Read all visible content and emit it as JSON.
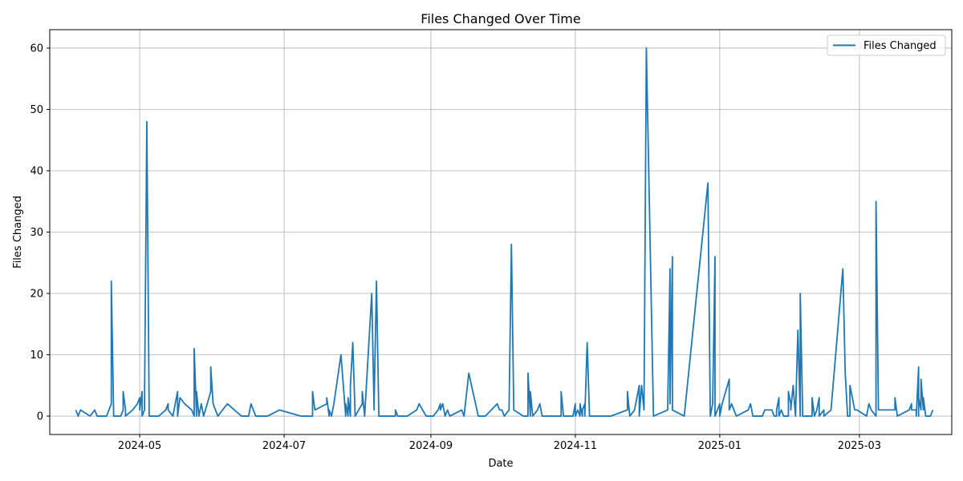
{
  "chart_data": {
    "type": "line",
    "title": "Files Changed Over Time",
    "xlabel": "Date",
    "ylabel": "Files Changed",
    "x_scale": "date",
    "xlim": [
      "2024-03-24",
      "2025-04-09"
    ],
    "ylim": [
      -3,
      63
    ],
    "x_ticks": [
      "2024-05-01",
      "2024-07-01",
      "2024-09-01",
      "2024-11-01",
      "2025-01-01",
      "2025-03-01"
    ],
    "x_tick_labels": [
      "2024-05",
      "2024-07",
      "2024-09",
      "2024-11",
      "2025-01",
      "2025-03"
    ],
    "y_ticks": [
      0,
      10,
      20,
      30,
      40,
      50,
      60
    ],
    "y_tick_labels": [
      "0",
      "10",
      "20",
      "30",
      "40",
      "50",
      "60"
    ],
    "grid": true,
    "legend_position": "top-right",
    "series": [
      {
        "name": "Files Changed",
        "color": "#1f77b4",
        "points": [
          [
            "2024-04-04",
            1
          ],
          [
            "2024-04-05",
            0
          ],
          [
            "2024-04-06",
            1
          ],
          [
            "2024-04-10",
            0
          ],
          [
            "2024-04-12",
            1
          ],
          [
            "2024-04-13",
            0
          ],
          [
            "2024-04-17",
            0
          ],
          [
            "2024-04-19",
            2
          ],
          [
            "2024-04-19",
            22
          ],
          [
            "2024-04-20",
            0
          ],
          [
            "2024-04-23",
            0
          ],
          [
            "2024-04-24",
            1
          ],
          [
            "2024-04-24",
            4
          ],
          [
            "2024-04-25",
            1
          ],
          [
            "2024-04-25",
            0
          ],
          [
            "2024-04-28",
            1
          ],
          [
            "2024-04-30",
            2
          ],
          [
            "2024-05-01",
            3
          ],
          [
            "2024-05-01",
            1
          ],
          [
            "2024-05-02",
            4
          ],
          [
            "2024-05-02",
            0
          ],
          [
            "2024-05-03",
            1
          ],
          [
            "2024-05-04",
            48
          ],
          [
            "2024-05-05",
            0
          ],
          [
            "2024-05-09",
            0
          ],
          [
            "2024-05-12",
            1
          ],
          [
            "2024-05-13",
            2
          ],
          [
            "2024-05-13",
            1
          ],
          [
            "2024-05-15",
            0
          ],
          [
            "2024-05-17",
            4
          ],
          [
            "2024-05-17",
            0
          ],
          [
            "2024-05-18",
            3
          ],
          [
            "2024-05-20",
            2
          ],
          [
            "2024-05-23",
            1
          ],
          [
            "2024-05-24",
            0
          ],
          [
            "2024-05-24",
            11
          ],
          [
            "2024-05-25",
            0
          ],
          [
            "2024-05-25",
            4
          ],
          [
            "2024-05-26",
            0
          ],
          [
            "2024-05-27",
            2
          ],
          [
            "2024-05-28",
            0
          ],
          [
            "2024-05-31",
            4
          ],
          [
            "2024-05-31",
            8
          ],
          [
            "2024-06-01",
            2
          ],
          [
            "2024-06-03",
            0
          ],
          [
            "2024-06-07",
            2
          ],
          [
            "2024-06-10",
            1
          ],
          [
            "2024-06-13",
            0
          ],
          [
            "2024-06-16",
            0
          ],
          [
            "2024-06-17",
            2
          ],
          [
            "2024-06-18",
            1
          ],
          [
            "2024-06-19",
            0
          ],
          [
            "2024-06-21",
            0
          ],
          [
            "2024-06-24",
            0
          ],
          [
            "2024-06-29",
            1
          ],
          [
            "2024-07-08",
            0
          ],
          [
            "2024-07-13",
            0
          ],
          [
            "2024-07-13",
            4
          ],
          [
            "2024-07-14",
            1
          ],
          [
            "2024-07-19",
            2
          ],
          [
            "2024-07-19",
            3
          ],
          [
            "2024-07-20",
            0
          ],
          [
            "2024-07-20",
            1
          ],
          [
            "2024-07-21",
            0
          ],
          [
            "2024-07-22",
            2
          ],
          [
            "2024-07-25",
            10
          ],
          [
            "2024-07-27",
            0
          ],
          [
            "2024-07-27",
            2
          ],
          [
            "2024-07-28",
            0
          ],
          [
            "2024-07-28",
            3
          ],
          [
            "2024-07-29",
            0
          ],
          [
            "2024-07-29",
            5
          ],
          [
            "2024-07-30",
            12
          ],
          [
            "2024-07-31",
            0
          ],
          [
            "2024-08-03",
            2
          ],
          [
            "2024-08-03",
            4
          ],
          [
            "2024-08-04",
            0
          ],
          [
            "2024-08-07",
            20
          ],
          [
            "2024-08-08",
            1
          ],
          [
            "2024-08-08",
            2
          ],
          [
            "2024-08-09",
            22
          ],
          [
            "2024-08-10",
            0
          ],
          [
            "2024-08-17",
            0
          ],
          [
            "2024-08-17",
            1
          ],
          [
            "2024-08-18",
            0
          ],
          [
            "2024-08-22",
            0
          ],
          [
            "2024-08-26",
            1
          ],
          [
            "2024-08-27",
            2
          ],
          [
            "2024-08-30",
            0
          ],
          [
            "2024-09-02",
            0
          ],
          [
            "2024-09-04",
            1
          ],
          [
            "2024-09-05",
            2
          ],
          [
            "2024-09-05",
            1
          ],
          [
            "2024-09-06",
            2
          ],
          [
            "2024-09-07",
            0
          ],
          [
            "2024-09-08",
            1
          ],
          [
            "2024-09-09",
            0
          ],
          [
            "2024-09-14",
            1
          ],
          [
            "2024-09-15",
            0
          ],
          [
            "2024-09-17",
            7
          ],
          [
            "2024-09-21",
            0
          ],
          [
            "2024-09-24",
            0
          ],
          [
            "2024-09-29",
            2
          ],
          [
            "2024-09-30",
            1
          ],
          [
            "2024-10-01",
            1
          ],
          [
            "2024-10-02",
            0
          ],
          [
            "2024-10-04",
            1
          ],
          [
            "2024-10-05",
            28
          ],
          [
            "2024-10-06",
            1
          ],
          [
            "2024-10-10",
            0
          ],
          [
            "2024-10-12",
            0
          ],
          [
            "2024-10-12",
            7
          ],
          [
            "2024-10-13",
            0
          ],
          [
            "2024-10-13",
            4
          ],
          [
            "2024-10-14",
            0
          ],
          [
            "2024-10-16",
            1
          ],
          [
            "2024-10-17",
            2
          ],
          [
            "2024-10-18",
            0
          ],
          [
            "2024-10-26",
            0
          ],
          [
            "2024-10-26",
            4
          ],
          [
            "2024-10-27",
            0
          ],
          [
            "2024-10-31",
            0
          ],
          [
            "2024-11-01",
            2
          ],
          [
            "2024-11-01",
            0
          ],
          [
            "2024-11-02",
            1
          ],
          [
            "2024-11-03",
            0
          ],
          [
            "2024-11-03",
            2
          ],
          [
            "2024-11-04",
            0
          ],
          [
            "2024-11-04",
            1
          ],
          [
            "2024-11-05",
            2
          ],
          [
            "2024-11-05",
            0
          ],
          [
            "2024-11-06",
            12
          ],
          [
            "2024-11-07",
            0
          ],
          [
            "2024-11-16",
            0
          ],
          [
            "2024-11-23",
            1
          ],
          [
            "2024-11-23",
            4
          ],
          [
            "2024-11-24",
            0
          ],
          [
            "2024-11-26",
            1
          ],
          [
            "2024-11-28",
            5
          ],
          [
            "2024-11-28",
            0
          ],
          [
            "2024-11-29",
            5
          ],
          [
            "2024-11-30",
            1
          ],
          [
            "2024-11-30",
            1
          ],
          [
            "2024-12-01",
            60
          ],
          [
            "2024-12-04",
            0
          ],
          [
            "2024-12-10",
            1
          ],
          [
            "2024-12-11",
            24
          ],
          [
            "2024-12-11",
            2
          ],
          [
            "2024-12-12",
            26
          ],
          [
            "2024-12-12",
            1
          ],
          [
            "2024-12-17",
            0
          ],
          [
            "2024-12-27",
            38
          ],
          [
            "2024-12-28",
            0
          ],
          [
            "2024-12-29",
            2
          ],
          [
            "2024-12-30",
            26
          ],
          [
            "2024-12-30",
            0
          ],
          [
            "2024-12-31",
            1
          ],
          [
            "2025-01-01",
            2
          ],
          [
            "2025-01-01",
            0
          ],
          [
            "2025-01-02",
            2
          ],
          [
            "2025-01-05",
            6
          ],
          [
            "2025-01-05",
            1
          ],
          [
            "2025-01-06",
            2
          ],
          [
            "2025-01-08",
            0
          ],
          [
            "2025-01-13",
            1
          ],
          [
            "2025-01-14",
            2
          ],
          [
            "2025-01-15",
            0
          ],
          [
            "2025-01-19",
            0
          ],
          [
            "2025-01-20",
            1
          ],
          [
            "2025-01-22",
            1
          ],
          [
            "2025-01-23",
            1
          ],
          [
            "2025-01-24",
            0
          ],
          [
            "2025-01-25",
            0
          ],
          [
            "2025-01-25",
            1
          ],
          [
            "2025-01-26",
            3
          ],
          [
            "2025-01-26",
            0
          ],
          [
            "2025-01-27",
            1
          ],
          [
            "2025-01-28",
            0
          ],
          [
            "2025-01-30",
            0
          ],
          [
            "2025-01-30",
            4
          ],
          [
            "2025-01-31",
            2
          ],
          [
            "2025-01-31",
            1
          ],
          [
            "2025-02-01",
            5
          ],
          [
            "2025-02-02",
            0
          ],
          [
            "2025-02-03",
            14
          ],
          [
            "2025-02-04",
            0
          ],
          [
            "2025-02-04",
            20
          ],
          [
            "2025-02-05",
            1
          ],
          [
            "2025-02-05",
            0
          ],
          [
            "2025-02-07",
            0
          ],
          [
            "2025-02-09",
            0
          ],
          [
            "2025-02-09",
            3
          ],
          [
            "2025-02-10",
            0
          ],
          [
            "2025-02-11",
            1
          ],
          [
            "2025-02-12",
            3
          ],
          [
            "2025-02-12",
            0
          ],
          [
            "2025-02-14",
            1
          ],
          [
            "2025-02-14",
            0
          ],
          [
            "2025-02-17",
            1
          ],
          [
            "2025-02-22",
            24
          ],
          [
            "2025-02-23",
            7
          ],
          [
            "2025-02-24",
            0
          ],
          [
            "2025-02-25",
            0
          ],
          [
            "2025-02-25",
            5
          ],
          [
            "2025-02-26",
            3
          ],
          [
            "2025-02-27",
            1
          ],
          [
            "2025-02-28",
            1
          ],
          [
            "2025-03-04",
            0
          ],
          [
            "2025-03-05",
            2
          ],
          [
            "2025-03-06",
            1
          ],
          [
            "2025-03-08",
            0
          ],
          [
            "2025-03-08",
            35
          ],
          [
            "2025-03-09",
            2
          ],
          [
            "2025-03-09",
            1
          ],
          [
            "2025-03-10",
            1
          ],
          [
            "2025-03-14",
            1
          ],
          [
            "2025-03-15",
            1
          ],
          [
            "2025-03-16",
            1
          ],
          [
            "2025-03-16",
            3
          ],
          [
            "2025-03-17",
            0
          ],
          [
            "2025-03-22",
            1
          ],
          [
            "2025-03-23",
            2
          ],
          [
            "2025-03-23",
            1
          ],
          [
            "2025-03-25",
            1
          ],
          [
            "2025-03-25",
            0
          ],
          [
            "2025-03-26",
            8
          ],
          [
            "2025-03-26",
            0
          ],
          [
            "2025-03-26",
            3
          ],
          [
            "2025-03-27",
            1
          ],
          [
            "2025-03-27",
            6
          ],
          [
            "2025-03-28",
            1
          ],
          [
            "2025-03-28",
            3
          ],
          [
            "2025-03-29",
            0
          ],
          [
            "2025-03-31",
            0
          ],
          [
            "2025-04-01",
            1
          ]
        ]
      }
    ]
  }
}
